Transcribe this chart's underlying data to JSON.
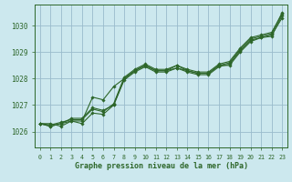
{
  "title": "Graphe pression niveau de la mer (hPa)",
  "bg_color": "#cce8ee",
  "grid_color": "#99bbcc",
  "line_color": "#2d6629",
  "marker_color": "#2d6629",
  "xlim": [
    -0.5,
    23.5
  ],
  "ylim": [
    1025.4,
    1030.8
  ],
  "yticks": [
    1026,
    1027,
    1028,
    1029,
    1030
  ],
  "xticks": [
    0,
    1,
    2,
    3,
    4,
    5,
    6,
    7,
    8,
    9,
    10,
    11,
    12,
    13,
    14,
    15,
    16,
    17,
    18,
    19,
    20,
    21,
    22,
    23
  ],
  "series": [
    [
      1026.3,
      1026.3,
      1026.2,
      1026.4,
      1026.3,
      1026.7,
      1026.65,
      1027.0,
      1028.0,
      1028.3,
      1028.5,
      1028.3,
      1028.3,
      1028.5,
      1028.3,
      1028.2,
      1028.2,
      1028.5,
      1028.6,
      1029.1,
      1029.5,
      1029.6,
      1029.7,
      1030.5
    ],
    [
      1026.3,
      1026.2,
      1026.3,
      1026.4,
      1026.4,
      1027.3,
      1027.2,
      1027.7,
      1028.0,
      1028.3,
      1028.5,
      1028.3,
      1028.3,
      1028.4,
      1028.3,
      1028.2,
      1028.2,
      1028.5,
      1028.5,
      1029.0,
      1029.4,
      1029.55,
      1029.65,
      1030.3
    ],
    [
      1026.3,
      1026.25,
      1026.35,
      1026.45,
      1026.45,
      1026.85,
      1026.75,
      1027.05,
      1028.05,
      1028.35,
      1028.55,
      1028.35,
      1028.35,
      1028.5,
      1028.35,
      1028.25,
      1028.25,
      1028.55,
      1028.65,
      1029.15,
      1029.55,
      1029.65,
      1029.75,
      1030.45
    ],
    [
      1026.3,
      1026.2,
      1026.3,
      1026.5,
      1026.5,
      1026.9,
      1026.8,
      1027.0,
      1027.95,
      1028.25,
      1028.45,
      1028.25,
      1028.25,
      1028.4,
      1028.25,
      1028.15,
      1028.15,
      1028.45,
      1028.55,
      1029.05,
      1029.45,
      1029.55,
      1029.6,
      1030.4
    ]
  ]
}
